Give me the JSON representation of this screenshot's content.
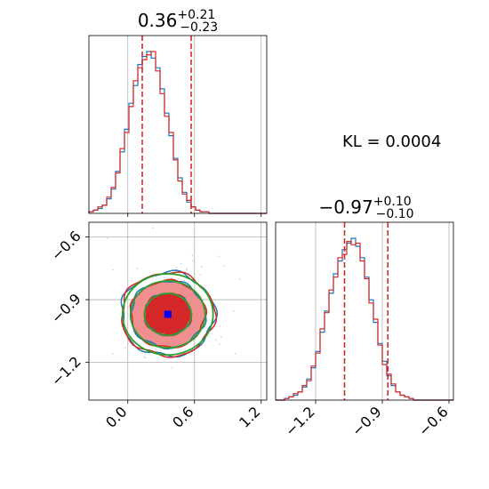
{
  "annotation": "KL = 0.0004",
  "colors": {
    "blue": "#1f77b4",
    "red": "#d62728",
    "green": "#2ca02c",
    "fill_dark": "#d62728",
    "fill_light": "#f08f8f",
    "marker": "#0000ff"
  },
  "chart_data": [
    {
      "id": "x-marginal",
      "type": "histogram",
      "title_main": "0.36",
      "title_sup": "+0.21",
      "title_sub": "−0.23",
      "xlim": [
        -0.35,
        1.25
      ],
      "grid": true,
      "median": 0.36,
      "quantile_lines": [
        0.13,
        0.57
      ],
      "series": [
        {
          "color": "blue",
          "bin_start": -0.35,
          "bin_width": 0.04,
          "values": [
            0.01,
            0.02,
            0.03,
            0.05,
            0.09,
            0.15,
            0.26,
            0.38,
            0.52,
            0.68,
            0.79,
            0.92,
            0.97,
            1.0,
            0.96,
            0.9,
            0.77,
            0.62,
            0.48,
            0.34,
            0.22,
            0.13,
            0.07,
            0.04,
            0.02,
            0.01,
            0.01,
            0.0,
            0.0,
            0.0,
            0.0,
            0.0,
            0.0,
            0.0,
            0.0,
            0.0,
            0.0,
            0.0,
            0.0,
            0.0
          ]
        },
        {
          "color": "red",
          "bin_start": -0.35,
          "bin_width": 0.04,
          "values": [
            0.01,
            0.02,
            0.04,
            0.05,
            0.1,
            0.16,
            0.25,
            0.4,
            0.5,
            0.66,
            0.82,
            0.9,
            0.95,
            0.98,
            1.0,
            0.88,
            0.74,
            0.6,
            0.5,
            0.33,
            0.2,
            0.12,
            0.08,
            0.04,
            0.02,
            0.01,
            0.01,
            0.0,
            0.0,
            0.0,
            0.0,
            0.0,
            0.0,
            0.0,
            0.0,
            0.0,
            0.0,
            0.0,
            0.0,
            0.0
          ]
        }
      ]
    },
    {
      "id": "y-marginal",
      "type": "histogram",
      "title_main": "−0.97",
      "title_sup": "+0.10",
      "title_sub": "−0.10",
      "xlim": [
        -1.38,
        -0.58
      ],
      "xticks": [
        -1.2,
        -0.9,
        -0.6
      ],
      "xtick_labels": [
        "−1.2",
        "−0.9",
        "−0.6"
      ],
      "grid": true,
      "median": -0.97,
      "quantile_lines": [
        -1.07,
        -0.875
      ],
      "series": [
        {
          "color": "blue",
          "bin_start": -1.38,
          "bin_width": 0.02,
          "values": [
            0.0,
            0.0,
            0.01,
            0.02,
            0.03,
            0.05,
            0.08,
            0.13,
            0.2,
            0.3,
            0.42,
            0.55,
            0.66,
            0.78,
            0.86,
            0.93,
            0.97,
            1.0,
            0.95,
            0.88,
            0.76,
            0.62,
            0.48,
            0.35,
            0.24,
            0.15,
            0.09,
            0.05,
            0.03,
            0.02,
            0.01,
            0.0,
            0.0,
            0.0,
            0.0,
            0.0,
            0.0,
            0.0,
            0.0,
            0.0
          ]
        },
        {
          "color": "red",
          "bin_start": -1.38,
          "bin_width": 0.02,
          "values": [
            0.0,
            0.0,
            0.01,
            0.02,
            0.04,
            0.05,
            0.09,
            0.12,
            0.21,
            0.29,
            0.44,
            0.54,
            0.68,
            0.76,
            0.88,
            0.9,
            0.98,
            0.96,
            0.97,
            0.86,
            0.75,
            0.6,
            0.5,
            0.34,
            0.22,
            0.16,
            0.1,
            0.05,
            0.03,
            0.02,
            0.01,
            0.0,
            0.0,
            0.0,
            0.0,
            0.0,
            0.0,
            0.0,
            0.0,
            0.0
          ]
        }
      ]
    },
    {
      "id": "joint",
      "type": "contour",
      "xlim": [
        -0.35,
        1.25
      ],
      "ylim": [
        -1.38,
        -0.53
      ],
      "xticks": [
        0.0,
        0.6,
        1.2
      ],
      "xtick_labels": [
        "0.0",
        "0.6",
        "1.2"
      ],
      "yticks": [
        -0.6,
        -0.9,
        -1.2
      ],
      "ytick_labels": [
        "−0.6",
        "−0.9",
        "−1.2"
      ],
      "grid": true,
      "center": [
        0.36,
        -0.97
      ],
      "sigma": [
        0.21,
        0.1
      ],
      "contour_levels_sigma": [
        1.0,
        1.6,
        2.0
      ],
      "marker": [
        0.36,
        -0.97
      ]
    }
  ]
}
